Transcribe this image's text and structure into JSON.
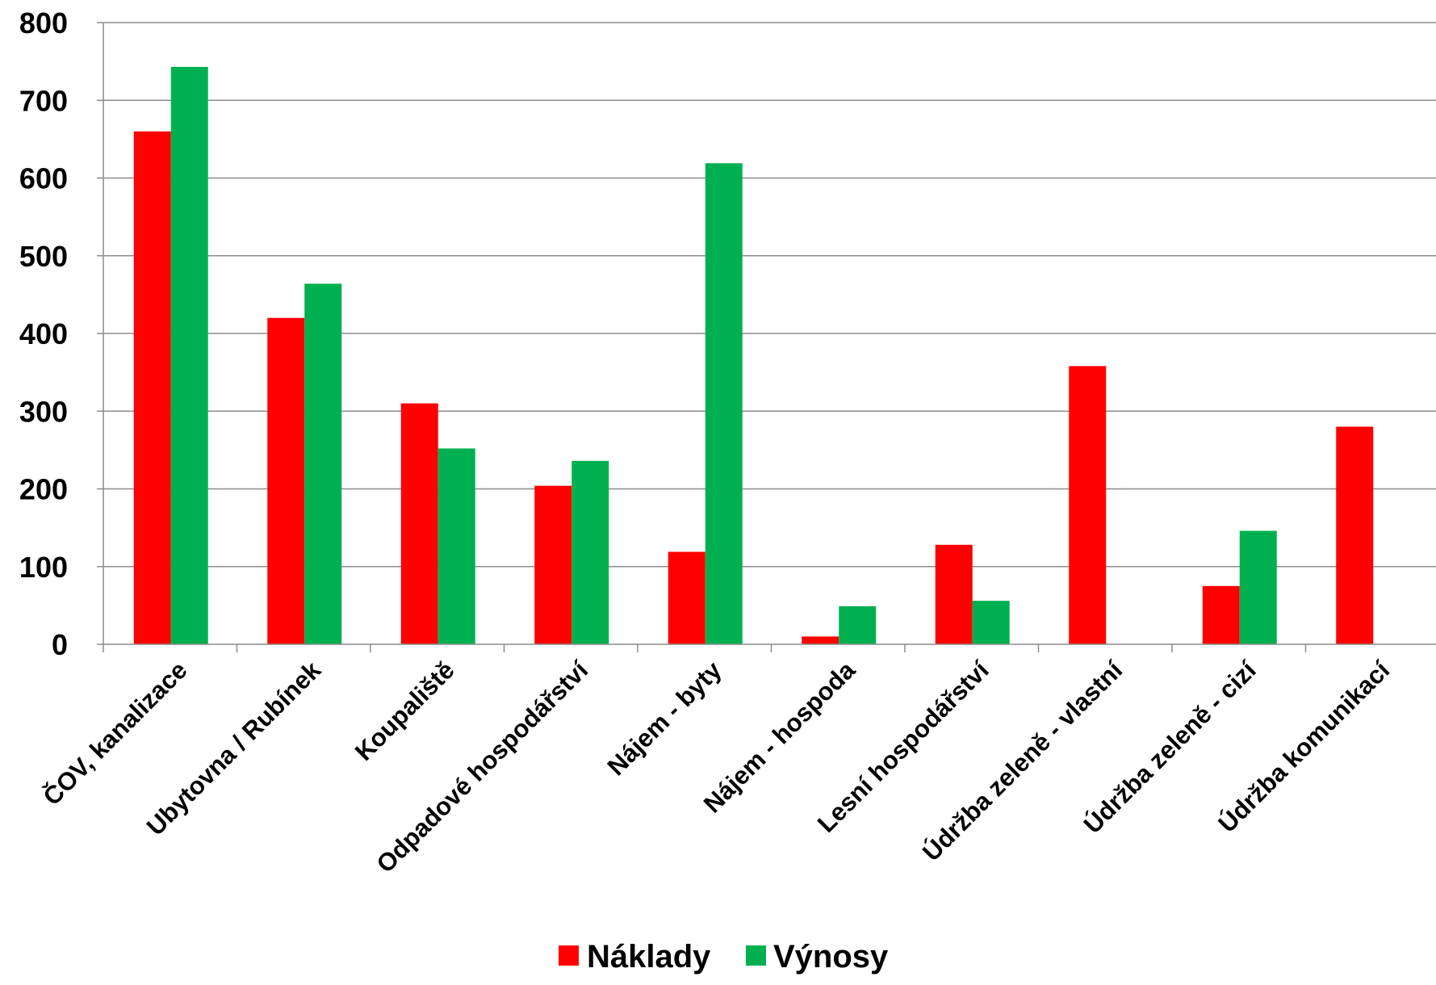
{
  "chart_data": {
    "type": "bar",
    "title": "",
    "xlabel": "",
    "ylabel": "",
    "ylim": [
      0,
      800
    ],
    "y_ticks": [
      "0",
      "100",
      "200",
      "300",
      "400",
      "500",
      "600",
      "700",
      "800"
    ],
    "grid": "horizontal",
    "legend_position": "bottom",
    "categories": [
      "ČOV, kanalizace",
      "Ubytovna / Rubínek",
      "Koupaliště",
      "Odpadové hospodářství",
      "Nájem - byty",
      "Nájem - hospoda",
      "Lesní hospodářství",
      "Údržba zeleně - vlastní",
      "Údržba zeleně - cizí",
      "Údržba komunikací"
    ],
    "series": [
      {
        "name": "Náklady",
        "color": "#ff0000",
        "values": [
          660,
          420,
          310,
          204,
          119,
          10,
          128,
          358,
          75,
          280
        ]
      },
      {
        "name": "Výnosy",
        "color": "#00b050",
        "values": [
          743,
          464,
          252,
          236,
          619,
          49,
          56,
          0,
          146,
          0
        ]
      }
    ]
  }
}
